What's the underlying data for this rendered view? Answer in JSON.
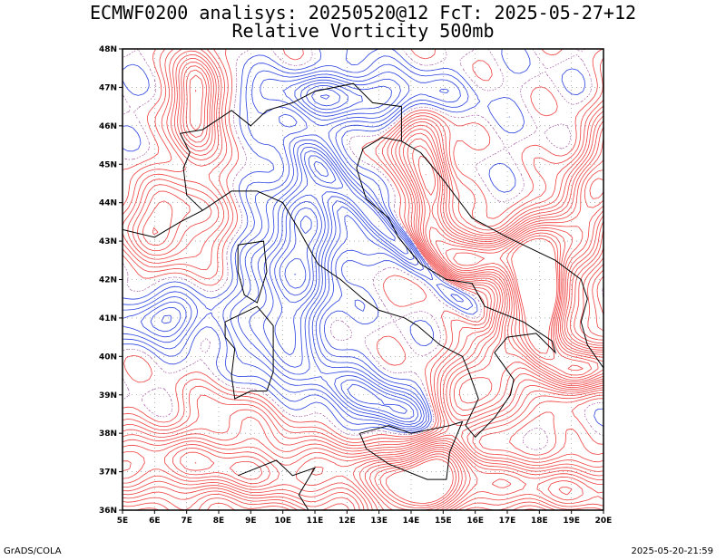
{
  "title": {
    "line1": "ECMWF0200 analisys: 20250520@12 FcT: 2025-05-27+12",
    "line2": "Relative Vorticity 500mb"
  },
  "map": {
    "lon_labels": [
      "5E",
      "6E",
      "7E",
      "8E",
      "9E",
      "10E",
      "11E",
      "12E",
      "13E",
      "14E",
      "15E",
      "16E",
      "17E",
      "18E",
      "19E",
      "20E"
    ],
    "lat_labels": [
      "48N",
      "47N",
      "46N",
      "45N",
      "44N",
      "43N",
      "42N",
      "41N",
      "40N",
      "39N",
      "38N",
      "37N",
      "36N"
    ],
    "lon_range": [
      5,
      20
    ],
    "lat_range": [
      36,
      48
    ],
    "colors": {
      "positive": "#f04040",
      "negative": "#2840e0",
      "zero": "#a050a0",
      "border": "#000000",
      "grid": "#808080"
    }
  },
  "footer": {
    "left": "GrADS/COLA",
    "right": "2025-05-20-21:59"
  }
}
